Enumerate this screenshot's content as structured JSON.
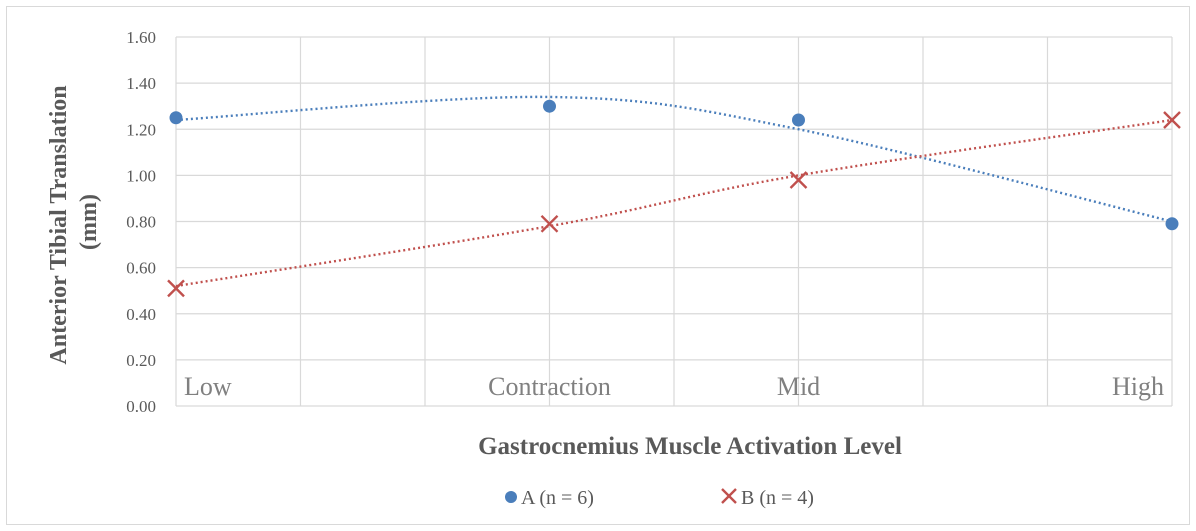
{
  "chart_data": {
    "type": "scatter",
    "ylabel": "Anterior Tibial Translation (mm)",
    "ylabel_lines": [
      "Anterior Tibial Translation",
      "(mm)"
    ],
    "xlabel": "Gastrocnemius Muscle Activation Level",
    "categories": [
      "Low",
      "Contraction",
      "Mid",
      "High"
    ],
    "ylim": [
      0,
      1.6
    ],
    "yticks": [
      "0.00",
      "0.20",
      "0.40",
      "0.60",
      "0.80",
      "1.00",
      "1.20",
      "1.40",
      "1.60"
    ],
    "grid": true,
    "legend_position": "bottom",
    "trendline": "polynomial, dotted",
    "series": [
      {
        "name": "A (n = 6)",
        "marker": "circle",
        "color": "#4a7ebb",
        "values": [
          1.25,
          1.3,
          1.24,
          0.79
        ],
        "trend": [
          1.24,
          1.34,
          1.2,
          0.8
        ]
      },
      {
        "name": "B (n = 4)",
        "marker": "x",
        "color": "#c0504d",
        "values": [
          0.51,
          0.79,
          0.98,
          1.24
        ],
        "trend": [
          0.52,
          0.78,
          1.0,
          1.24
        ]
      }
    ]
  }
}
